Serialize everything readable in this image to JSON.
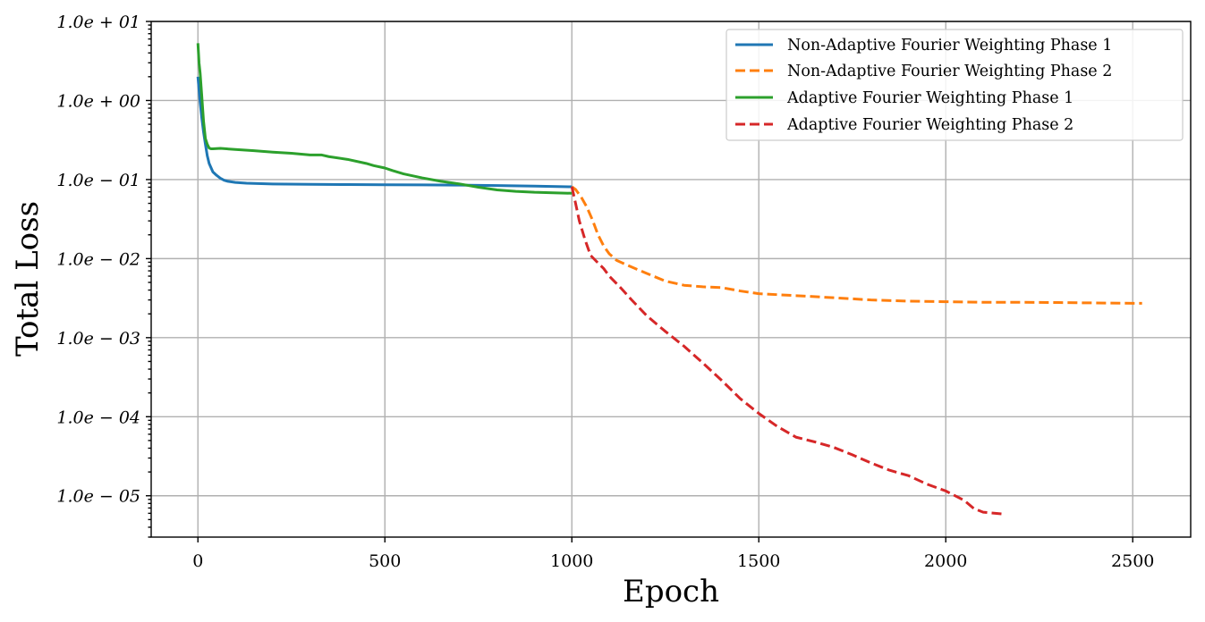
{
  "chart_data": {
    "type": "line",
    "title": "",
    "xlabel": "Epoch",
    "ylabel": "Total Loss",
    "xscale": "linear",
    "yscale": "log",
    "xlim": [
      -125,
      2655
    ],
    "ylim": [
      3e-06,
      10
    ],
    "grid": true,
    "legend_position": "top-right",
    "x_ticks": [
      {
        "value": 0,
        "label": "0"
      },
      {
        "value": 500,
        "label": "500"
      },
      {
        "value": 1000,
        "label": "1000"
      },
      {
        "value": 1500,
        "label": "1500"
      },
      {
        "value": 2000,
        "label": "2000"
      },
      {
        "value": 2500,
        "label": "2500"
      }
    ],
    "y_ticks": [
      {
        "value": 10,
        "label": "1.0e + 01"
      },
      {
        "value": 1,
        "label": "1.0e + 00"
      },
      {
        "value": 0.1,
        "label": "1.0e − 01"
      },
      {
        "value": 0.01,
        "label": "1.0e − 02"
      },
      {
        "value": 0.001,
        "label": "1.0e − 03"
      },
      {
        "value": 0.0001,
        "label": "1.0e − 04"
      },
      {
        "value": 1e-05,
        "label": "1.0e − 05"
      }
    ],
    "series": [
      {
        "name": "Non-Adaptive Fourier Weighting Phase 1",
        "color": "#1f77b4",
        "dash": "solid",
        "x": [
          0,
          5,
          10,
          15,
          20,
          25,
          30,
          40,
          50,
          60,
          70,
          80,
          100,
          130,
          160,
          200,
          300,
          400,
          500,
          600,
          700,
          800,
          900,
          1000
        ],
        "y": [
          2.0,
          1.05,
          0.62,
          0.4,
          0.28,
          0.2,
          0.16,
          0.125,
          0.113,
          0.104,
          0.098,
          0.095,
          0.092,
          0.09,
          0.089,
          0.088,
          0.087,
          0.0865,
          0.086,
          0.0855,
          0.085,
          0.084,
          0.0825,
          0.081
        ]
      },
      {
        "name": "Non-Adaptive Fourier Weighting Phase 2",
        "color": "#ff7f0e",
        "dash": "dashed",
        "x": [
          1000,
          1010,
          1025,
          1040,
          1055,
          1070,
          1085,
          1100,
          1120,
          1150,
          1200,
          1250,
          1300,
          1350,
          1400,
          1450,
          1500,
          1600,
          1700,
          1800,
          1900,
          2000,
          2100,
          2200,
          2300,
          2400,
          2500,
          2525
        ],
        "y": [
          0.081,
          0.075,
          0.06,
          0.045,
          0.031,
          0.02,
          0.0145,
          0.0115,
          0.0095,
          0.0082,
          0.0065,
          0.0052,
          0.0046,
          0.0044,
          0.0043,
          0.0039,
          0.0036,
          0.0034,
          0.0032,
          0.003,
          0.0029,
          0.00285,
          0.0028,
          0.0028,
          0.00278,
          0.00275,
          0.00272,
          0.00272
        ]
      },
      {
        "name": "Adaptive Fourier Weighting Phase 1",
        "color": "#2ca02c",
        "dash": "solid",
        "x": [
          0,
          3,
          6,
          10,
          15,
          20,
          25,
          30,
          35,
          40,
          60,
          100,
          150,
          200,
          250,
          300,
          330,
          350,
          400,
          450,
          470,
          500,
          520,
          550,
          600,
          650,
          700,
          750,
          800,
          850,
          900,
          950,
          1000
        ],
        "y": [
          5.3,
          3.0,
          2.2,
          1.2,
          0.55,
          0.33,
          0.28,
          0.25,
          0.245,
          0.245,
          0.248,
          0.24,
          0.232,
          0.222,
          0.215,
          0.205,
          0.205,
          0.195,
          0.18,
          0.16,
          0.15,
          0.14,
          0.13,
          0.118,
          0.105,
          0.095,
          0.088,
          0.08,
          0.074,
          0.071,
          0.069,
          0.068,
          0.067
        ]
      },
      {
        "name": "Adaptive Fourier Weighting Phase 2",
        "color": "#d62728",
        "dash": "dashed",
        "x": [
          1000,
          1010,
          1020,
          1035,
          1050,
          1070,
          1085,
          1100,
          1130,
          1160,
          1200,
          1250,
          1300,
          1350,
          1400,
          1450,
          1500,
          1550,
          1600,
          1650,
          1700,
          1750,
          1800,
          1850,
          1900,
          1950,
          2000,
          2050,
          2075,
          2100,
          2150
        ],
        "y": [
          0.081,
          0.05,
          0.03,
          0.0175,
          0.011,
          0.0088,
          0.0075,
          0.006,
          0.0043,
          0.003,
          0.0019,
          0.0012,
          0.00078,
          0.00048,
          0.00029,
          0.00017,
          0.00011,
          7.5e-05,
          5.5e-05,
          4.8e-05,
          4.1e-05,
          3.3e-05,
          2.6e-05,
          2.1e-05,
          1.8e-05,
          1.4e-05,
          1.15e-05,
          8.7e-06,
          6.9e-06,
          6.2e-06,
          5.9e-06
        ]
      }
    ]
  }
}
